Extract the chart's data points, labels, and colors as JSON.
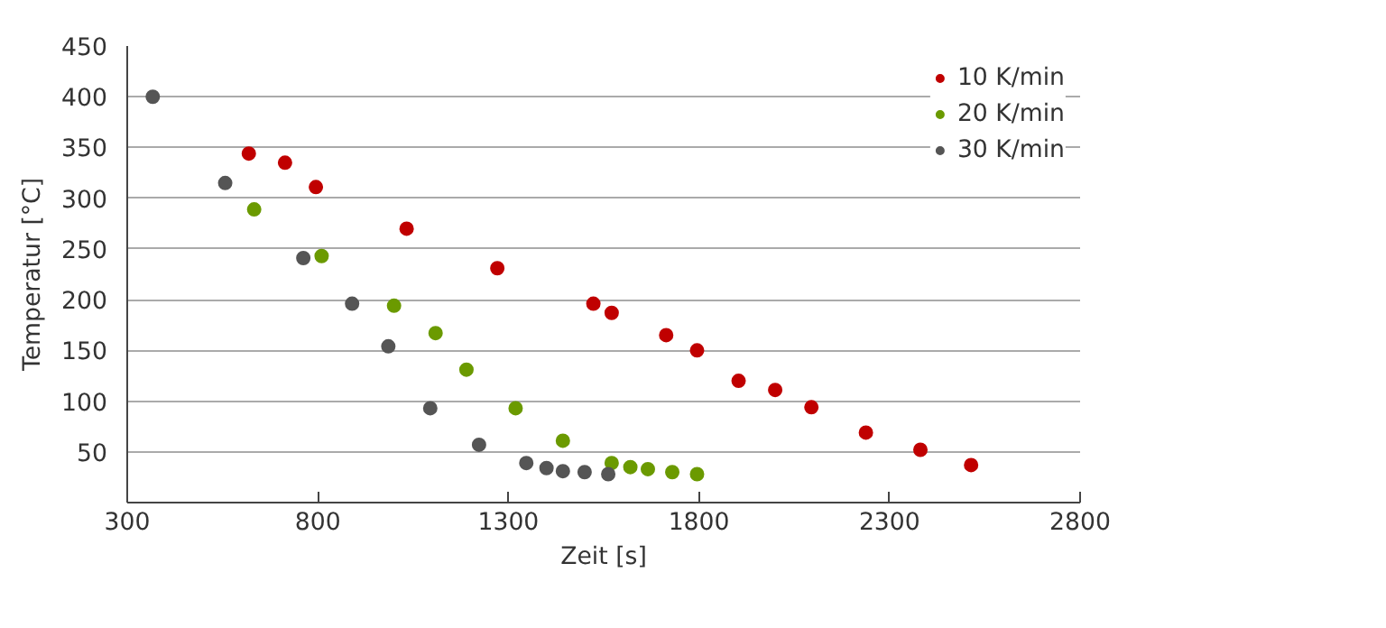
{
  "chart_data": {
    "type": "scatter",
    "xlabel": "Zeit [s]",
    "ylabel": "Temperatur [°C]",
    "xlim": [
      300,
      2800
    ],
    "xticks": [
      300,
      800,
      1300,
      1800,
      2300,
      2800
    ],
    "ylim": [
      0,
      450
    ],
    "yticks": [
      50,
      100,
      150,
      200,
      250,
      300,
      350,
      400,
      450
    ],
    "grid": "y",
    "legend": "top right",
    "marker": "circle",
    "series": [
      {
        "name": "10 K/min",
        "color": "#c00000",
        "x": [
          619,
          714,
          795,
          1033,
          1271,
          1523,
          1571,
          1714,
          1795,
          1904,
          2000,
          2095,
          2238,
          2381,
          2514
        ],
        "values": [
          344,
          335,
          311,
          270,
          231,
          196,
          187,
          165,
          150,
          120,
          111,
          94,
          69,
          52,
          37
        ]
      },
      {
        "name": "20 K/min",
        "color": "#6b9a00",
        "x": [
          633,
          810,
          1000,
          1109,
          1190,
          1319,
          1443,
          1571,
          1620,
          1666,
          1730,
          1795
        ],
        "values": [
          289,
          243,
          194,
          167,
          131,
          93,
          61,
          39,
          35,
          33,
          30,
          28
        ]
      },
      {
        "name": "30 K/min",
        "color": "#555555",
        "x": [
          367,
          557,
          762,
          890,
          985,
          1095,
          1223,
          1347,
          1400,
          1443,
          1500,
          1562
        ],
        "values": [
          400,
          315,
          241,
          196,
          154,
          93,
          57,
          39,
          34,
          31,
          30,
          28
        ]
      }
    ]
  }
}
